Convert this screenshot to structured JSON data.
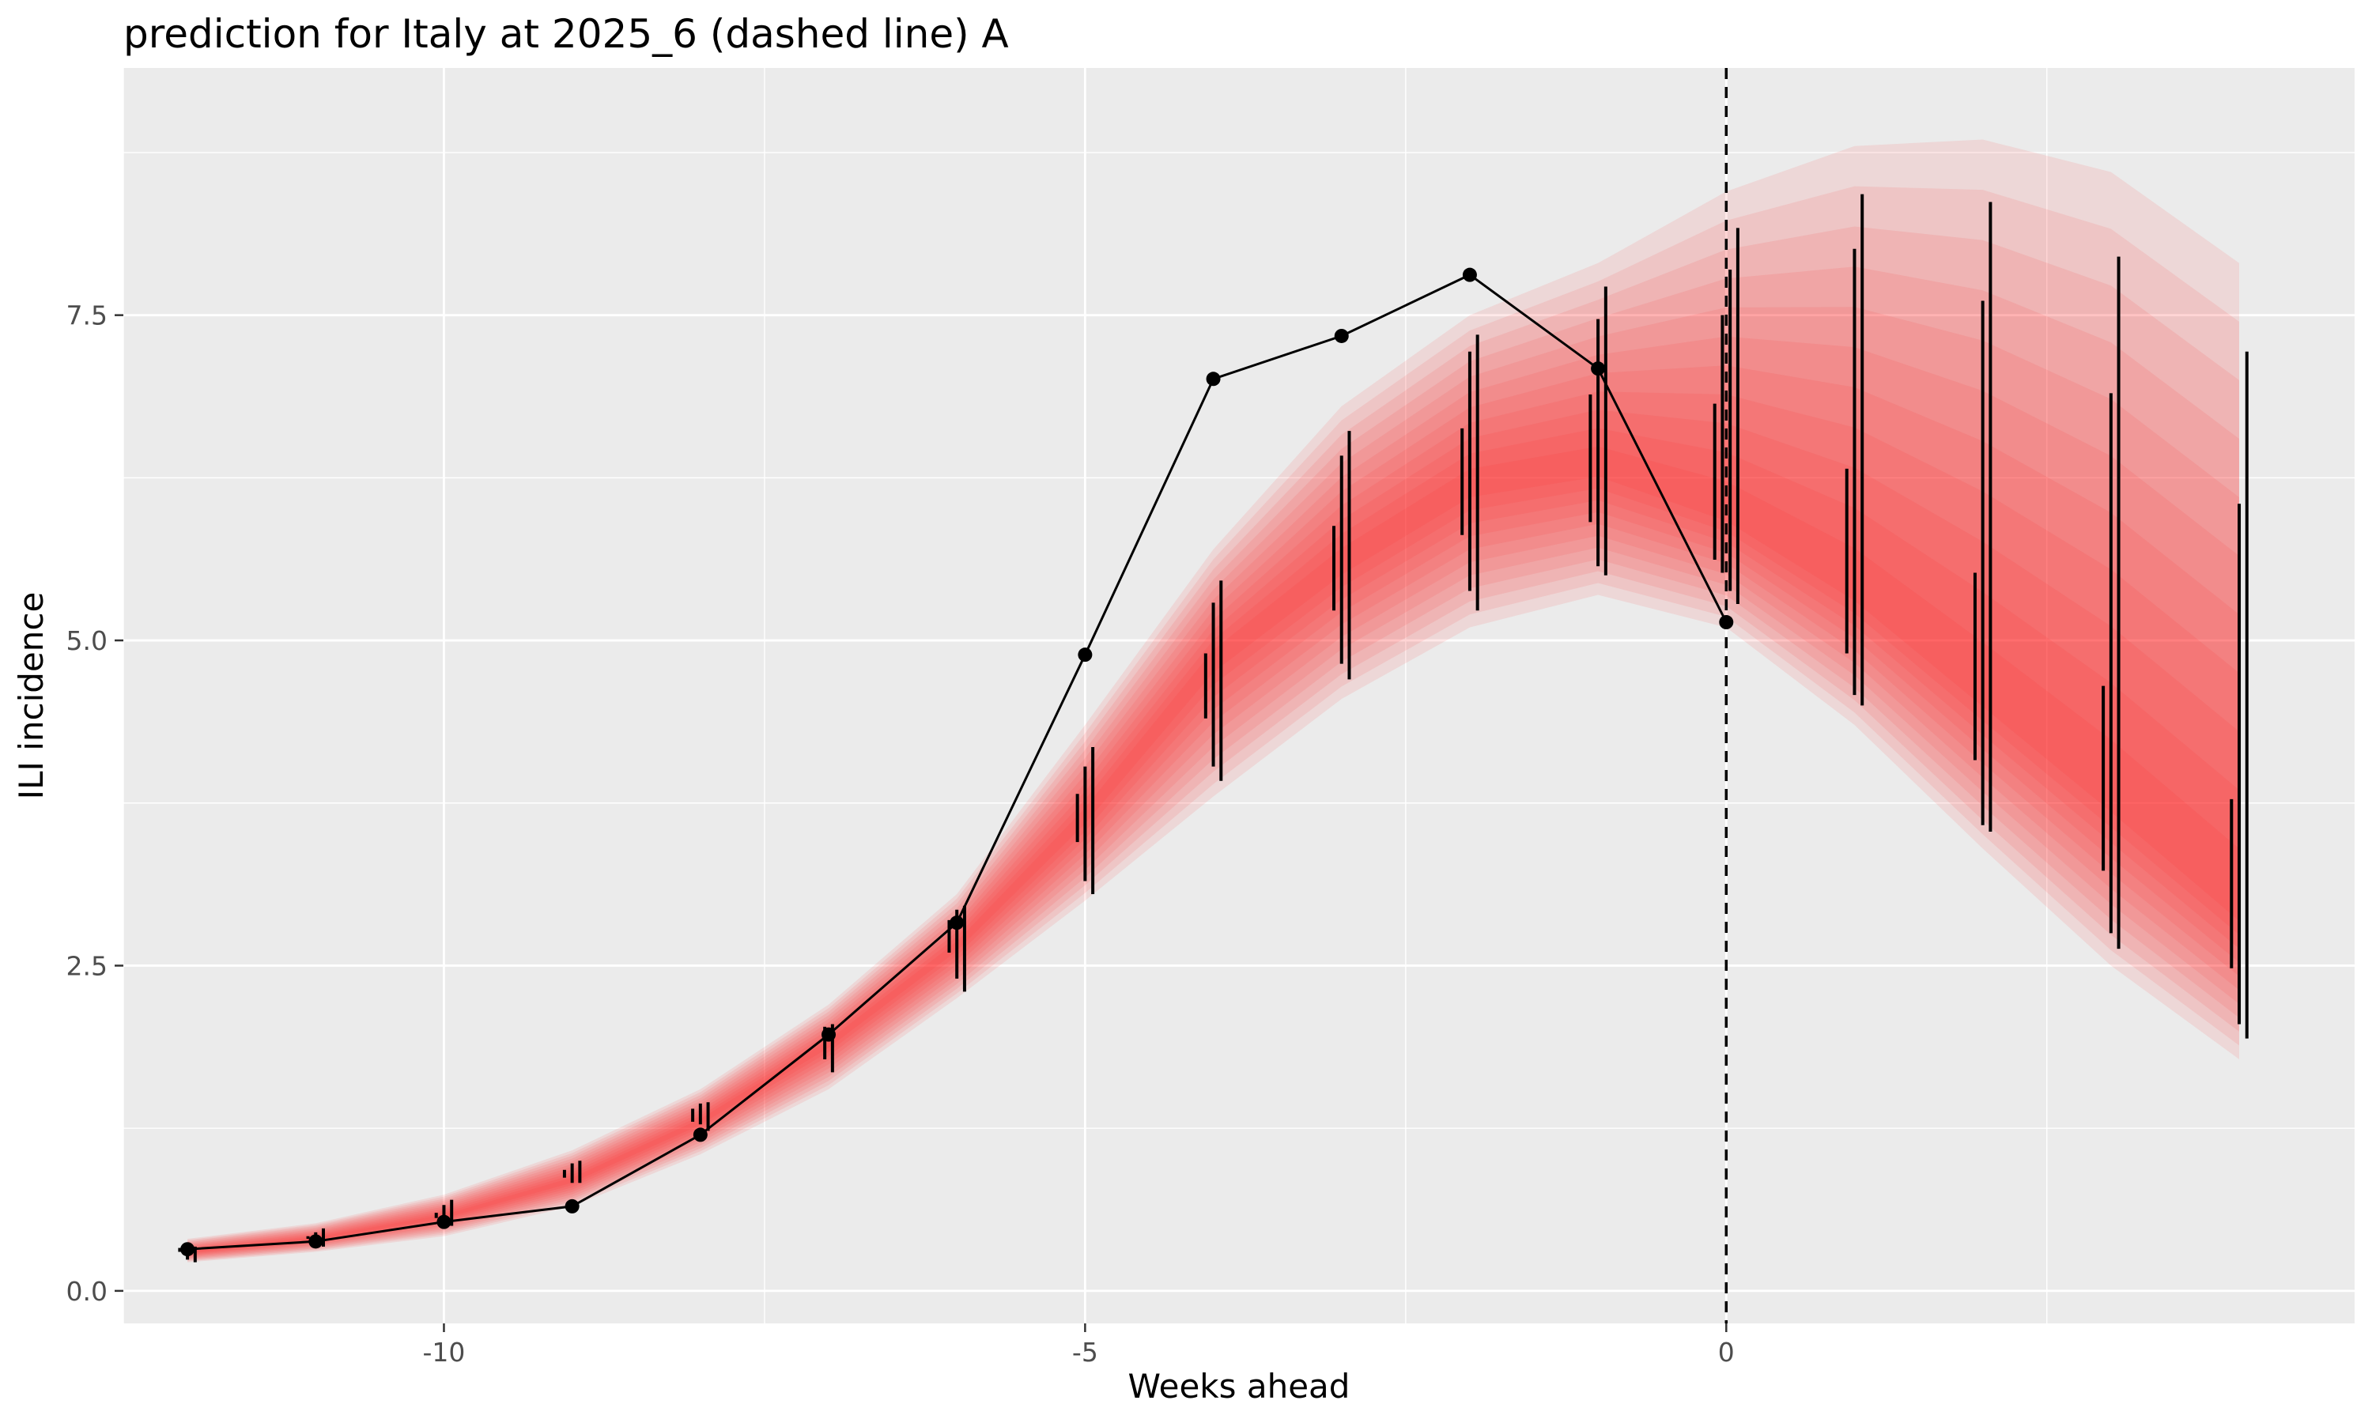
{
  "chart_data": {
    "type": "line",
    "title": "prediction for Italy at 2025_6 (dashed line) A",
    "xlabel": "Weeks ahead",
    "ylabel": "ILI incidence",
    "xlim": [
      -12.5,
      4.9
    ],
    "ylim": [
      -0.25,
      9.4
    ],
    "x_ticks": [
      -10,
      -5,
      0
    ],
    "x_tick_labels": [
      "-10",
      "-5",
      "0"
    ],
    "y_ticks": [
      0,
      2.5,
      5,
      7.5
    ],
    "y_tick_labels": [
      "0.0",
      "2.5",
      "5.0",
      "7.5"
    ],
    "x_minor_ticks": [
      -12.5,
      -7.5,
      -2.5,
      2.5
    ],
    "y_minor_ticks": [
      1.25,
      3.75,
      6.25,
      8.75
    ],
    "grid": true,
    "vline_x": 0,
    "colors": {
      "panel": "#ebebeb",
      "grid": "#ffffff",
      "band": "#ff2a2a",
      "observed": "#000000"
    },
    "observed": {
      "x": [
        -12,
        -11,
        -10,
        -9,
        -8,
        -7,
        -6,
        -5,
        -4,
        -3,
        -2,
        -1,
        0
      ],
      "y": [
        0.32,
        0.38,
        0.53,
        0.65,
        1.2,
        1.97,
        2.83,
        4.89,
        7.01,
        7.34,
        7.81,
        7.09,
        5.14
      ]
    },
    "forecast": {
      "x": [
        -12,
        -11,
        -10,
        -9,
        -8,
        -7,
        -6,
        -5,
        -4,
        -3,
        -2,
        -1,
        0,
        1,
        2,
        3,
        4
      ],
      "median": [
        0.3,
        0.4,
        0.57,
        0.85,
        1.3,
        1.9,
        2.65,
        3.65,
        4.85,
        5.6,
        6.2,
        6.35,
        6.0,
        5.4,
        4.6,
        3.8,
        2.95
      ],
      "lower": [
        0.22,
        0.3,
        0.42,
        0.65,
        1.05,
        1.55,
        2.25,
        3.0,
        3.8,
        4.55,
        5.1,
        5.35,
        5.1,
        4.35,
        3.4,
        2.5,
        1.78
      ],
      "upper": [
        0.4,
        0.52,
        0.74,
        1.08,
        1.55,
        2.2,
        3.05,
        4.35,
        5.7,
        6.8,
        7.5,
        7.9,
        8.45,
        8.8,
        8.85,
        8.6,
        7.9
      ]
    },
    "vintages": [
      {
        "x": [
          -12,
          -12,
          -12
        ],
        "lo": [
          0.3,
          0.24,
          0.22
        ],
        "hi": [
          0.33,
          0.34,
          0.34
        ]
      },
      {
        "x": [
          -11,
          -11,
          -11
        ],
        "lo": [
          0.4,
          0.36,
          0.34
        ],
        "hi": [
          0.42,
          0.45,
          0.48
        ]
      },
      {
        "x": [
          -10,
          -10,
          -10
        ],
        "lo": [
          0.56,
          0.52,
          0.5
        ],
        "hi": [
          0.6,
          0.66,
          0.7
        ]
      },
      {
        "x": [
          -9,
          -9,
          -9
        ],
        "lo": [
          0.87,
          0.83,
          0.83
        ],
        "hi": [
          0.93,
          0.98,
          1.0
        ]
      },
      {
        "x": [
          -8,
          -8,
          -8
        ],
        "lo": [
          1.3,
          1.28,
          1.23
        ],
        "hi": [
          1.4,
          1.44,
          1.45
        ]
      },
      {
        "x": [
          -7,
          -7
        ],
        "lo": [
          1.78,
          1.68
        ],
        "hi": [
          2.03,
          2.05
        ]
      },
      {
        "x": [
          -6,
          -6,
          -6
        ],
        "lo": [
          2.6,
          2.4,
          2.3
        ],
        "hi": [
          2.85,
          2.93,
          2.96
        ]
      },
      {
        "x": [
          -5,
          -5,
          -5
        ],
        "lo": [
          3.45,
          3.15,
          3.05
        ],
        "hi": [
          3.82,
          4.03,
          4.18
        ]
      },
      {
        "x": [
          -4,
          -4,
          -4
        ],
        "lo": [
          4.4,
          4.03,
          3.92
        ],
        "hi": [
          4.9,
          5.29,
          5.46
        ]
      },
      {
        "x": [
          -3,
          -3,
          -3
        ],
        "lo": [
          5.23,
          4.82,
          4.7
        ],
        "hi": [
          5.88,
          6.42,
          6.61
        ]
      },
      {
        "x": [
          -2,
          -2,
          -2
        ],
        "lo": [
          5.81,
          5.38,
          5.23
        ],
        "hi": [
          6.63,
          7.22,
          7.35
        ]
      },
      {
        "x": [
          -1,
          -1,
          -1
        ],
        "lo": [
          5.91,
          5.57,
          5.5
        ],
        "hi": [
          6.89,
          7.47,
          7.72
        ]
      },
      {
        "x": [
          0,
          0,
          0,
          0
        ],
        "lo": [
          5.62,
          5.52,
          5.38,
          5.28
        ],
        "hi": [
          6.82,
          7.5,
          7.85,
          8.17
        ]
      },
      {
        "x": [
          1,
          1,
          1
        ],
        "lo": [
          4.9,
          4.58,
          4.5
        ],
        "hi": [
          6.32,
          8.01,
          8.43
        ]
      },
      {
        "x": [
          2,
          2,
          2
        ],
        "lo": [
          4.08,
          3.58,
          3.53
        ],
        "hi": [
          5.52,
          7.61,
          8.37
        ]
      },
      {
        "x": [
          3,
          3,
          3
        ],
        "lo": [
          3.23,
          2.75,
          2.63
        ],
        "hi": [
          4.65,
          6.9,
          7.95
        ]
      },
      {
        "x": [
          4,
          4,
          4
        ],
        "lo": [
          2.48,
          2.05,
          1.94
        ],
        "hi": [
          3.78,
          6.05,
          7.22
        ]
      }
    ]
  }
}
